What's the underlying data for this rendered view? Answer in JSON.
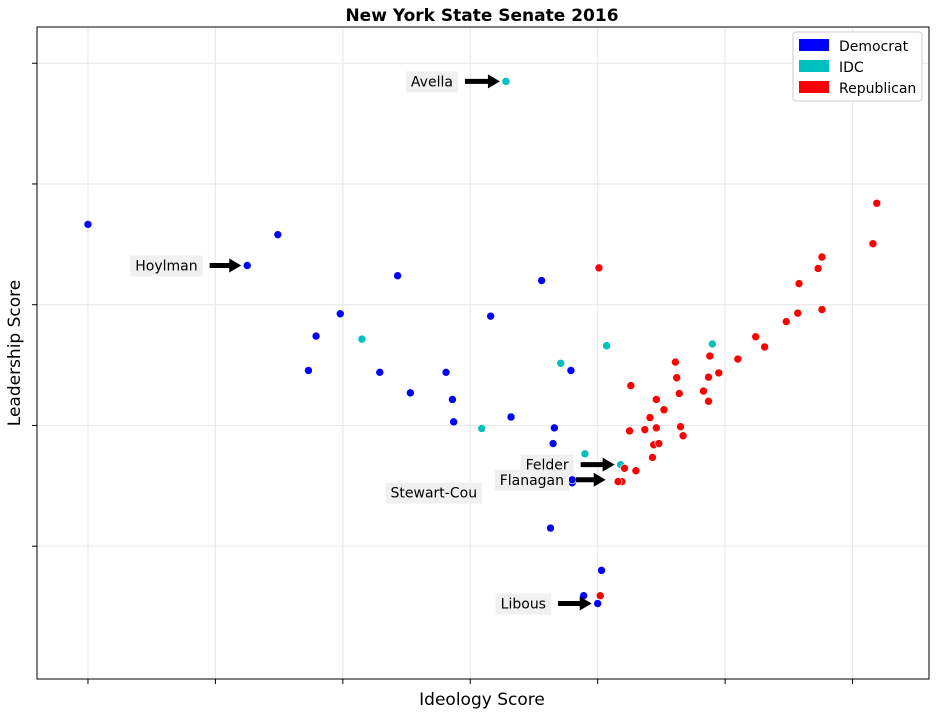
{
  "chart_data": {
    "type": "scatter",
    "title": "New York State Senate 2016",
    "xlabel": "Ideology Score",
    "ylabel": "Leadership Score",
    "xlim": [
      -0.04,
      0.66
    ],
    "ylim": [
      -0.02,
      1.06
    ],
    "grid": true,
    "legend_position": "top-right",
    "legend": [
      {
        "name": "Democrat",
        "color": "#0000ff"
      },
      {
        "name": "IDC",
        "color": "#00bfbf"
      },
      {
        "name": "Republican",
        "color": "#ff0000"
      }
    ],
    "series": [
      {
        "name": "Democrat",
        "color": "#0000ff",
        "points": [
          [
            0.0,
            0.733
          ],
          [
            0.149,
            0.716
          ],
          [
            0.125,
            0.665
          ],
          [
            0.243,
            0.648
          ],
          [
            0.198,
            0.585
          ],
          [
            0.179,
            0.548
          ],
          [
            0.173,
            0.491
          ],
          [
            0.229,
            0.488
          ],
          [
            0.281,
            0.488
          ],
          [
            0.253,
            0.454
          ],
          [
            0.286,
            0.443
          ],
          [
            0.287,
            0.406
          ],
          [
            0.316,
            0.581
          ],
          [
            0.356,
            0.64
          ],
          [
            0.332,
            0.414
          ],
          [
            0.379,
            0.491
          ],
          [
            0.365,
            0.37
          ],
          [
            0.364,
            0.302
          ],
          [
            0.363,
            0.23
          ],
          [
            0.38,
            0.305
          ],
          [
            0.366,
            0.396
          ],
          [
            0.38,
            0.31
          ],
          [
            0.389,
            0.118
          ],
          [
            0.4,
            0.105
          ],
          [
            0.403,
            0.16
          ]
        ]
      },
      {
        "name": "IDC",
        "color": "#00bfbf",
        "points": [
          [
            0.328,
            0.97
          ],
          [
            0.215,
            0.543
          ],
          [
            0.309,
            0.395
          ],
          [
            0.371,
            0.503
          ],
          [
            0.407,
            0.532
          ],
          [
            0.39,
            0.353
          ],
          [
            0.418,
            0.335
          ],
          [
            0.49,
            0.535
          ]
        ]
      },
      {
        "name": "Republican",
        "color": "#ff0000",
        "points": [
          [
            0.401,
            0.661
          ],
          [
            0.619,
            0.768
          ],
          [
            0.616,
            0.701
          ],
          [
            0.576,
            0.679
          ],
          [
            0.573,
            0.66
          ],
          [
            0.558,
            0.635
          ],
          [
            0.576,
            0.592
          ],
          [
            0.557,
            0.586
          ],
          [
            0.548,
            0.572
          ],
          [
            0.524,
            0.547
          ],
          [
            0.531,
            0.53
          ],
          [
            0.51,
            0.51
          ],
          [
            0.488,
            0.515
          ],
          [
            0.495,
            0.487
          ],
          [
            0.487,
            0.48
          ],
          [
            0.461,
            0.505
          ],
          [
            0.462,
            0.479
          ],
          [
            0.483,
            0.457
          ],
          [
            0.426,
            0.466
          ],
          [
            0.425,
            0.391
          ],
          [
            0.446,
            0.443
          ],
          [
            0.452,
            0.426
          ],
          [
            0.441,
            0.413
          ],
          [
            0.444,
            0.368
          ],
          [
            0.448,
            0.37
          ],
          [
            0.446,
            0.396
          ],
          [
            0.437,
            0.393
          ],
          [
            0.464,
            0.453
          ],
          [
            0.465,
            0.398
          ],
          [
            0.467,
            0.383
          ],
          [
            0.443,
            0.347
          ],
          [
            0.487,
            0.44
          ],
          [
            0.421,
            0.329
          ],
          [
            0.419,
            0.307
          ],
          [
            0.416,
            0.307
          ],
          [
            0.43,
            0.325
          ],
          [
            0.402,
            0.118
          ]
        ]
      }
    ],
    "annotations": [
      {
        "text": "Avella",
        "point": [
          0.328,
          0.97
        ]
      },
      {
        "text": "Hoylman",
        "point": [
          0.125,
          0.665
        ]
      },
      {
        "text": "Felder",
        "point": [
          0.418,
          0.335
        ]
      },
      {
        "text": "Stewart-Cou",
        "point": [
          0.363,
          0.302
        ]
      },
      {
        "text": "Flanagan",
        "point": [
          0.411,
          0.31
        ]
      },
      {
        "text": "Libous",
        "point": [
          0.4,
          0.105
        ]
      }
    ]
  }
}
